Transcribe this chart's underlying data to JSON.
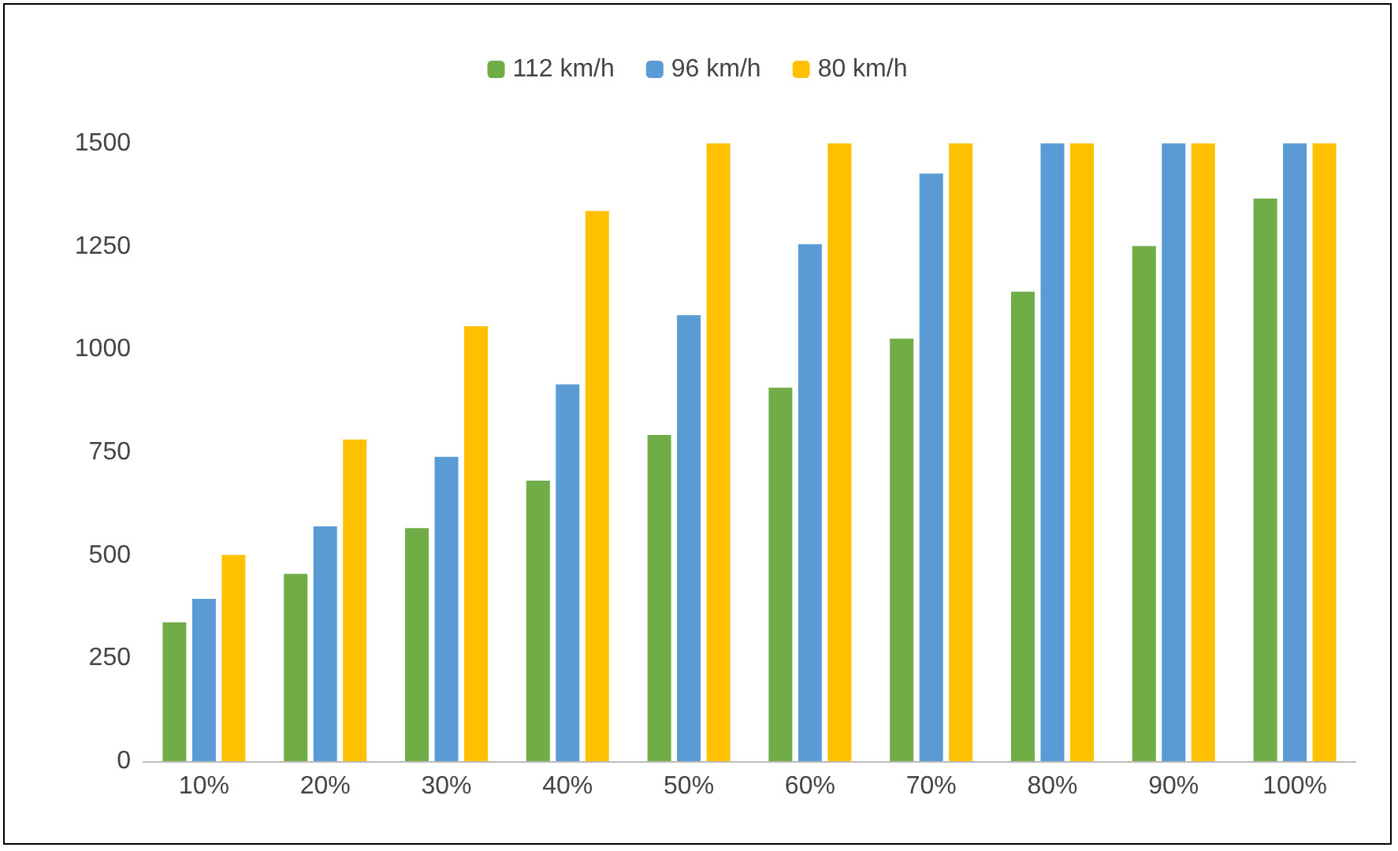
{
  "chart_data": {
    "type": "bar",
    "categories": [
      "10%",
      "20%",
      "30%",
      "40%",
      "50%",
      "60%",
      "70%",
      "80%",
      "90%",
      "100%"
    ],
    "series": [
      {
        "name": "112 km/h",
        "color": "#70ad47",
        "values": [
          337,
          455,
          566,
          681,
          792,
          907,
          1026,
          1140,
          1251,
          1366
        ]
      },
      {
        "name": "96 km/h",
        "color": "#5b9bd5",
        "values": [
          394,
          570,
          739,
          915,
          1083,
          1255,
          1427,
          1500,
          1500,
          1500
        ]
      },
      {
        "name": "80 km/h",
        "color": "#ffc000",
        "values": [
          501,
          781,
          1056,
          1336,
          1500,
          1500,
          1500,
          1500,
          1500,
          1500
        ]
      }
    ],
    "ylim": [
      0,
      1500
    ],
    "yticks": [
      0,
      250,
      500,
      750,
      1000,
      1250,
      1500
    ],
    "grid": false,
    "legend": "top"
  }
}
